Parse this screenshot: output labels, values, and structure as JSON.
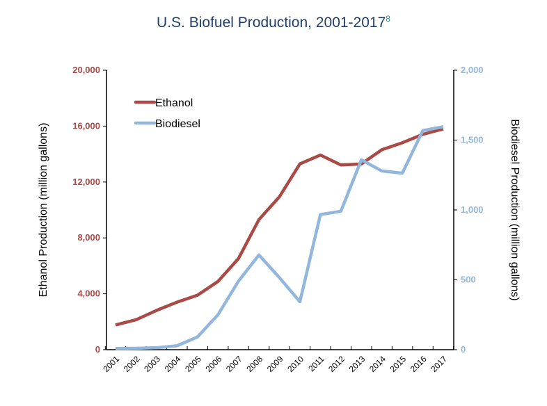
{
  "chart_data": {
    "type": "line",
    "title": "U.S. Biofuel Production, 2001-2017",
    "title_footnote": "8",
    "x": [
      2001,
      2002,
      2003,
      2004,
      2005,
      2006,
      2007,
      2008,
      2009,
      2010,
      2011,
      2012,
      2013,
      2014,
      2015,
      2016,
      2017
    ],
    "xtick_labels": [
      "2001",
      "2002",
      "2003",
      "2004",
      "2005",
      "2006",
      "2007",
      "2008",
      "2009",
      "2010",
      "2011",
      "2012",
      "2013",
      "2014",
      "2015",
      "2016",
      "2017"
    ],
    "ylabel": "Ethanol Production (million gallons)",
    "y2label": "Biodiesel Production (million gallons)",
    "ylim": [
      0,
      20000
    ],
    "y2lim": [
      0,
      2000
    ],
    "yticks": [
      "0",
      "4,000",
      "8,000",
      "12,000",
      "16,000",
      "20,000"
    ],
    "y2ticks": [
      "0",
      "500",
      "1,000",
      "1,500",
      "2,000"
    ],
    "legend_position": "top-left",
    "grid": false,
    "series": [
      {
        "name": "Ethanol",
        "axis": "left",
        "color": "#a94a46",
        "values": [
          1770,
          2140,
          2810,
          3400,
          3900,
          4880,
          6520,
          9310,
          10940,
          13300,
          13930,
          13220,
          13290,
          14310,
          14810,
          15410,
          15800
        ]
      },
      {
        "name": "Biodiesel",
        "axis": "right",
        "color": "#93b7dc",
        "values": [
          9,
          10,
          14,
          28,
          91,
          250,
          490,
          678,
          516,
          343,
          967,
          991,
          1359,
          1279,
          1263,
          1568,
          1596
        ]
      }
    ]
  }
}
